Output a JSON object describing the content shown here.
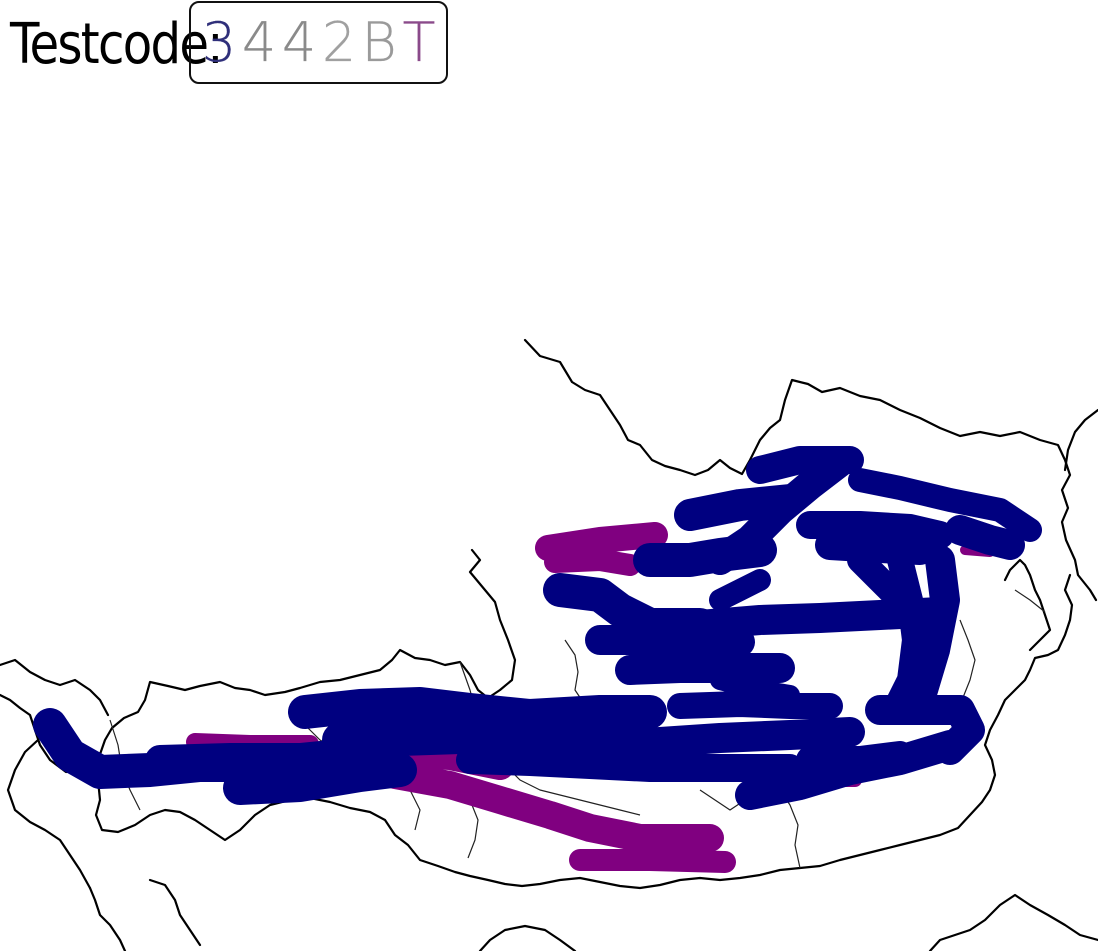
{
  "header": {
    "label": "Testcode:",
    "code_chars": [
      {
        "char": "3",
        "color": "#2f2f7a"
      },
      {
        "char": "4",
        "color": "#8a8a8a"
      },
      {
        "char": "4",
        "color": "#8a8a8a"
      },
      {
        "char": "2",
        "color": "#a0a0a0"
      },
      {
        "char": "B",
        "color": "#9a9a9a"
      },
      {
        "char": "T",
        "color": "#8a4a8a"
      }
    ]
  },
  "map": {
    "border_color": "#000000",
    "legend_colors": {
      "blue": "#000080",
      "purple": "#800080"
    }
  }
}
